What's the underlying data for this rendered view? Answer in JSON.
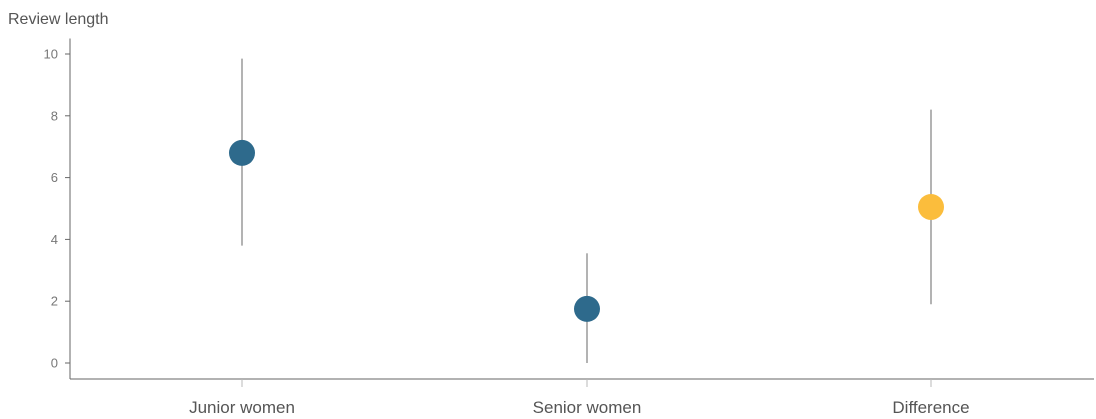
{
  "chart_data": {
    "type": "scatter",
    "ylabel": "Review length",
    "xlabel": "",
    "title": "",
    "ylim": [
      -0.5,
      10.5
    ],
    "yticks": [
      0,
      2,
      4,
      6,
      8,
      10
    ],
    "categories": [
      "Junior women",
      "Senior women",
      "Difference"
    ],
    "points": [
      {
        "category": "Junior women",
        "value": 6.8,
        "lower": 3.8,
        "upper": 9.85,
        "color": "#2e6a8c"
      },
      {
        "category": "Senior women",
        "value": 1.75,
        "lower": 0.0,
        "upper": 3.55,
        "color": "#2e6a8c"
      },
      {
        "category": "Difference",
        "value": 5.05,
        "lower": 1.9,
        "upper": 8.2,
        "color": "#fbbd3c"
      }
    ],
    "grid": false,
    "legend": "none",
    "colors": {
      "main": "#2e6a8c",
      "difference": "#fbbd3c",
      "errorbar": "#8a8a8a",
      "axis": "#666666"
    }
  }
}
